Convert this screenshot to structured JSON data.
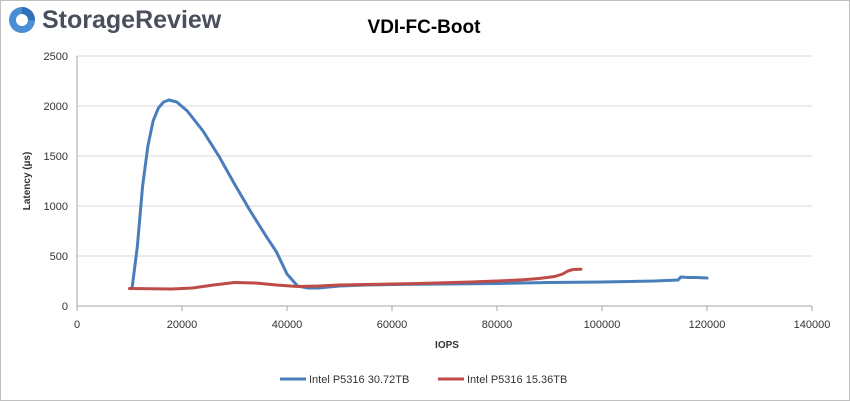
{
  "brand": {
    "logo_text": "StorageReview",
    "logo_color": "#4a4f5c",
    "logo_icon_color": "#4a8fd4",
    "logo_icon": "storage-review-logo-icon"
  },
  "chart_data": {
    "type": "line",
    "title": "VDI-FC-Boot",
    "xlabel": "IOPS",
    "ylabel": "Latency (µs)",
    "xlim": [
      0,
      140000
    ],
    "ylim": [
      0,
      2500
    ],
    "xticks": [
      0,
      20000,
      40000,
      60000,
      80000,
      100000,
      120000,
      140000
    ],
    "yticks": [
      0,
      500,
      1000,
      1500,
      2000,
      2500
    ],
    "grid": "horizontal",
    "legend_position": "bottom",
    "series": [
      {
        "name": "Intel P5316 30.72TB",
        "color": "#4a7ebb",
        "points": [
          [
            10500,
            180
          ],
          [
            11500,
            600
          ],
          [
            12500,
            1200
          ],
          [
            13500,
            1600
          ],
          [
            14500,
            1850
          ],
          [
            15500,
            1980
          ],
          [
            16500,
            2040
          ],
          [
            17500,
            2060
          ],
          [
            19000,
            2040
          ],
          [
            21000,
            1950
          ],
          [
            24000,
            1750
          ],
          [
            27000,
            1500
          ],
          [
            30000,
            1220
          ],
          [
            33000,
            950
          ],
          [
            36000,
            700
          ],
          [
            38000,
            540
          ],
          [
            40000,
            320
          ],
          [
            42000,
            200
          ],
          [
            44000,
            180
          ],
          [
            46000,
            180
          ],
          [
            48000,
            190
          ],
          [
            50000,
            200
          ],
          [
            55000,
            210
          ],
          [
            60000,
            215
          ],
          [
            70000,
            220
          ],
          [
            80000,
            225
          ],
          [
            90000,
            235
          ],
          [
            100000,
            240
          ],
          [
            110000,
            250
          ],
          [
            114500,
            260
          ],
          [
            115000,
            290
          ],
          [
            116500,
            285
          ],
          [
            118000,
            285
          ],
          [
            120000,
            280
          ]
        ]
      },
      {
        "name": "Intel P5316 15.36TB",
        "color": "#be4b48",
        "points": [
          [
            10000,
            175
          ],
          [
            14000,
            172
          ],
          [
            18000,
            170
          ],
          [
            22000,
            180
          ],
          [
            26000,
            210
          ],
          [
            30000,
            235
          ],
          [
            34000,
            230
          ],
          [
            38000,
            210
          ],
          [
            42000,
            195
          ],
          [
            46000,
            200
          ],
          [
            50000,
            210
          ],
          [
            55000,
            215
          ],
          [
            60000,
            220
          ],
          [
            65000,
            225
          ],
          [
            70000,
            232
          ],
          [
            75000,
            240
          ],
          [
            80000,
            250
          ],
          [
            85000,
            262
          ],
          [
            88000,
            275
          ],
          [
            91000,
            295
          ],
          [
            92500,
            320
          ],
          [
            93500,
            350
          ],
          [
            94500,
            365
          ],
          [
            96000,
            368
          ]
        ]
      }
    ]
  }
}
